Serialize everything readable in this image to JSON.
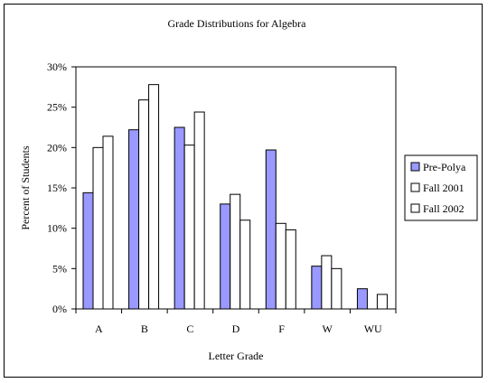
{
  "chart_data": {
    "type": "bar",
    "title": "Grade Distributions for Algebra",
    "xlabel": "Letter Grade",
    "ylabel": "Percent of Students",
    "categories": [
      "A",
      "B",
      "C",
      "D",
      "F",
      "W",
      "WU"
    ],
    "ylim": [
      0,
      30
    ],
    "yticks": [
      "0%",
      "5%",
      "10%",
      "15%",
      "20%",
      "25%",
      "30%"
    ],
    "grid": false,
    "legend_position": "right",
    "series": [
      {
        "name": "Pre-Polya",
        "color": "#9999ff",
        "values": [
          14.4,
          22.2,
          22.5,
          13.0,
          19.7,
          5.3,
          2.5
        ]
      },
      {
        "name": "Fall 2001",
        "color": "#ffffff",
        "values": [
          20.0,
          25.9,
          20.3,
          14.2,
          10.6,
          6.6,
          0
        ]
      },
      {
        "name": "Fall 2002",
        "color": "#ffffff",
        "values": [
          21.4,
          27.8,
          24.4,
          11.0,
          9.8,
          5.0,
          1.8
        ]
      }
    ]
  }
}
